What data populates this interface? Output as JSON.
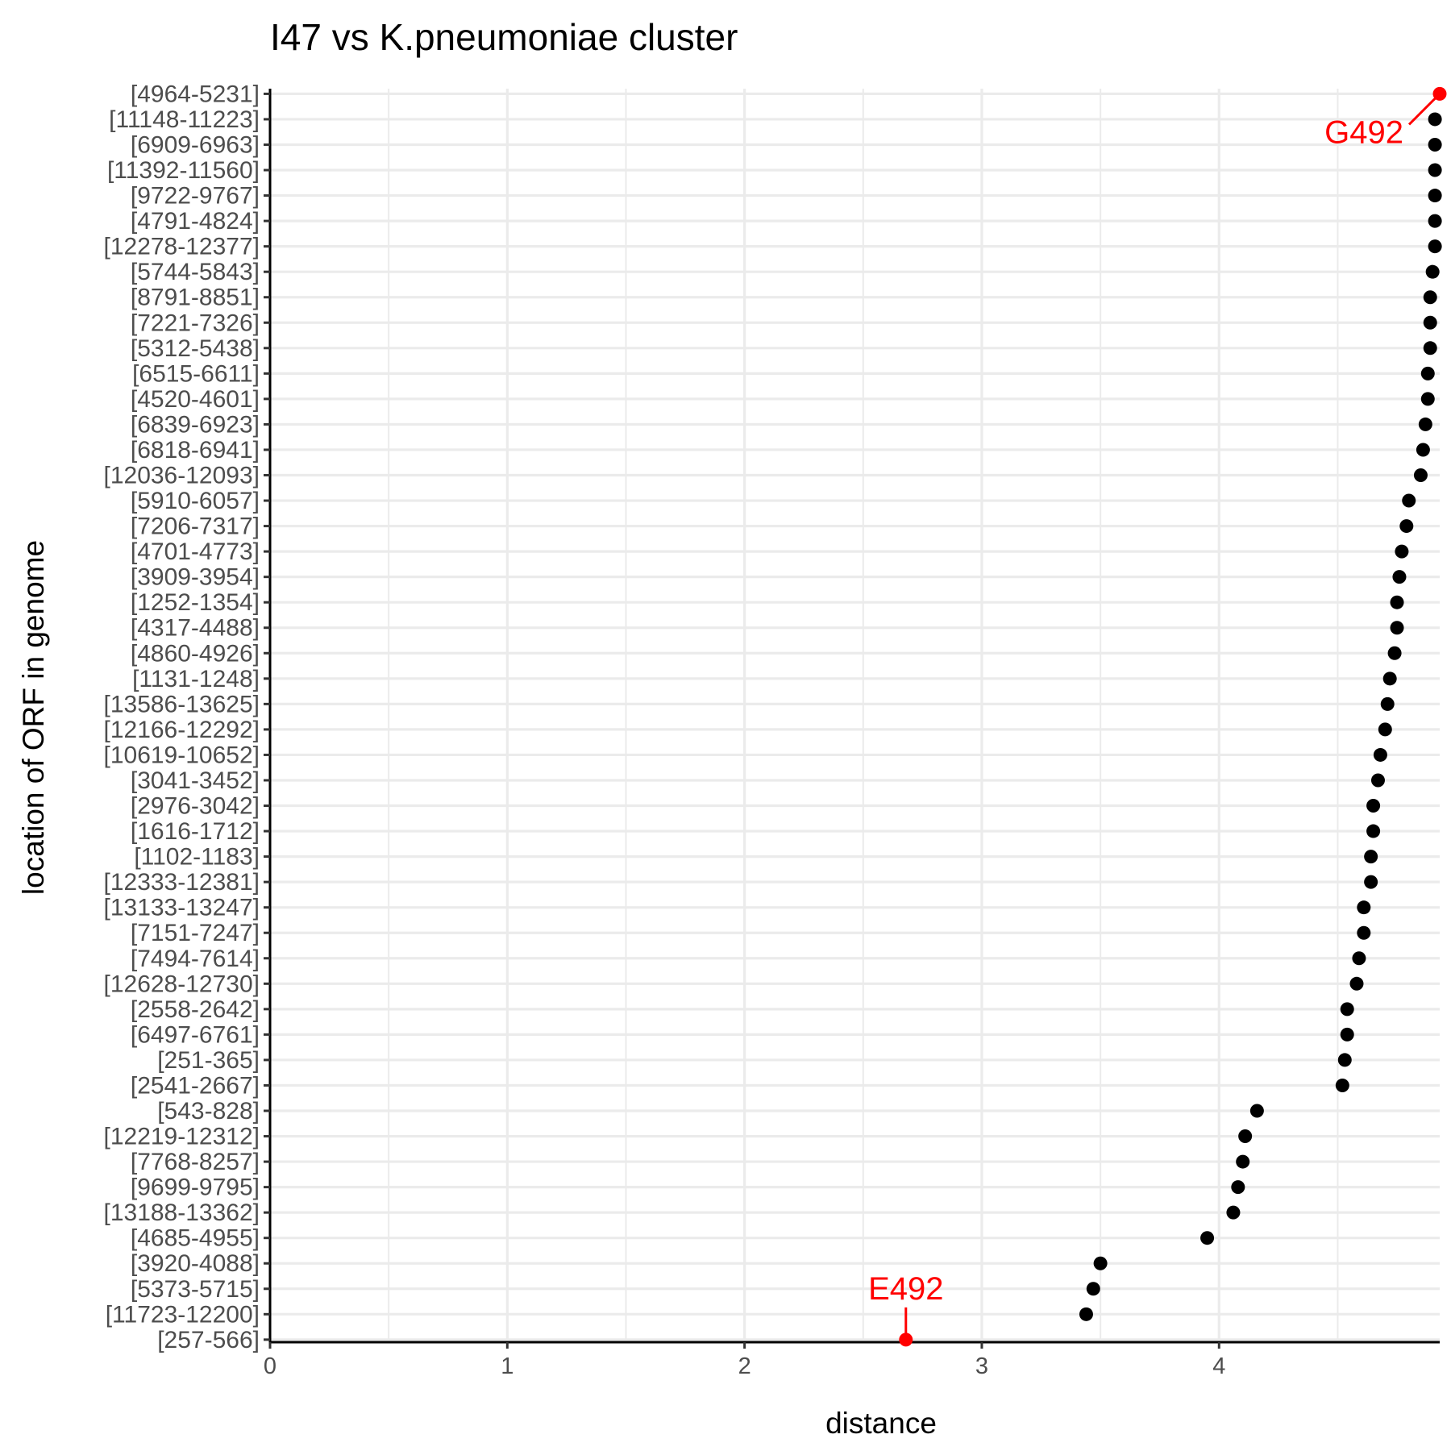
{
  "chart_data": {
    "type": "scatter",
    "title": "I47 vs K.pneumoniae cluster",
    "xlabel": "distance",
    "ylabel": "location of ORF in genome",
    "xlim": [
      0,
      4.93
    ],
    "xticks": [
      0,
      1,
      2,
      3,
      4
    ],
    "grid": true,
    "point_color": "#000000",
    "highlight_color": "#ff0000",
    "points": [
      {
        "orf": "[4964-5231]",
        "distance": 4.93
      },
      {
        "orf": "[11148-11223]",
        "distance": 4.91
      },
      {
        "orf": "[6909-6963]",
        "distance": 4.91
      },
      {
        "orf": "[11392-11560]",
        "distance": 4.91
      },
      {
        "orf": "[9722-9767]",
        "distance": 4.91
      },
      {
        "orf": "[4791-4824]",
        "distance": 4.91
      },
      {
        "orf": "[12278-12377]",
        "distance": 4.91
      },
      {
        "orf": "[5744-5843]",
        "distance": 4.9
      },
      {
        "orf": "[8791-8851]",
        "distance": 4.89
      },
      {
        "orf": "[7221-7326]",
        "distance": 4.89
      },
      {
        "orf": "[5312-5438]",
        "distance": 4.89
      },
      {
        "orf": "[6515-6611]",
        "distance": 4.88
      },
      {
        "orf": "[4520-4601]",
        "distance": 4.88
      },
      {
        "orf": "[6839-6923]",
        "distance": 4.87
      },
      {
        "orf": "[6818-6941]",
        "distance": 4.86
      },
      {
        "orf": "[12036-12093]",
        "distance": 4.85
      },
      {
        "orf": "[5910-6057]",
        "distance": 4.8
      },
      {
        "orf": "[7206-7317]",
        "distance": 4.79
      },
      {
        "orf": "[4701-4773]",
        "distance": 4.77
      },
      {
        "orf": "[3909-3954]",
        "distance": 4.76
      },
      {
        "orf": "[1252-1354]",
        "distance": 4.75
      },
      {
        "orf": "[4317-4488]",
        "distance": 4.75
      },
      {
        "orf": "[4860-4926]",
        "distance": 4.74
      },
      {
        "orf": "[1131-1248]",
        "distance": 4.72
      },
      {
        "orf": "[13586-13625]",
        "distance": 4.71
      },
      {
        "orf": "[12166-12292]",
        "distance": 4.7
      },
      {
        "orf": "[10619-10652]",
        "distance": 4.68
      },
      {
        "orf": "[3041-3452]",
        "distance": 4.67
      },
      {
        "orf": "[2976-3042]",
        "distance": 4.65
      },
      {
        "orf": "[1616-1712]",
        "distance": 4.65
      },
      {
        "orf": "[1102-1183]",
        "distance": 4.64
      },
      {
        "orf": "[12333-12381]",
        "distance": 4.64
      },
      {
        "orf": "[13133-13247]",
        "distance": 4.61
      },
      {
        "orf": "[7151-7247]",
        "distance": 4.61
      },
      {
        "orf": "[7494-7614]",
        "distance": 4.59
      },
      {
        "orf": "[12628-12730]",
        "distance": 4.58
      },
      {
        "orf": "[2558-2642]",
        "distance": 4.54
      },
      {
        "orf": "[6497-6761]",
        "distance": 4.54
      },
      {
        "orf": "[251-365]",
        "distance": 4.53
      },
      {
        "orf": "[2541-2667]",
        "distance": 4.52
      },
      {
        "orf": "[543-828]",
        "distance": 4.16
      },
      {
        "orf": "[12219-12312]",
        "distance": 4.11
      },
      {
        "orf": "[7768-8257]",
        "distance": 4.1
      },
      {
        "orf": "[9699-9795]",
        "distance": 4.08
      },
      {
        "orf": "[13188-13362]",
        "distance": 4.06
      },
      {
        "orf": "[4685-4955]",
        "distance": 3.95
      },
      {
        "orf": "[3920-4088]",
        "distance": 3.5
      },
      {
        "orf": "[5373-5715]",
        "distance": 3.47
      },
      {
        "orf": "[11723-12200]",
        "distance": 3.44
      },
      {
        "orf": "[257-566]",
        "distance": 2.68
      }
    ],
    "annotations": [
      {
        "label": "G492",
        "orf": "[4964-5231]",
        "color": "#ff0000"
      },
      {
        "label": "E492",
        "orf": "[257-566]",
        "color": "#ff0000"
      }
    ]
  }
}
